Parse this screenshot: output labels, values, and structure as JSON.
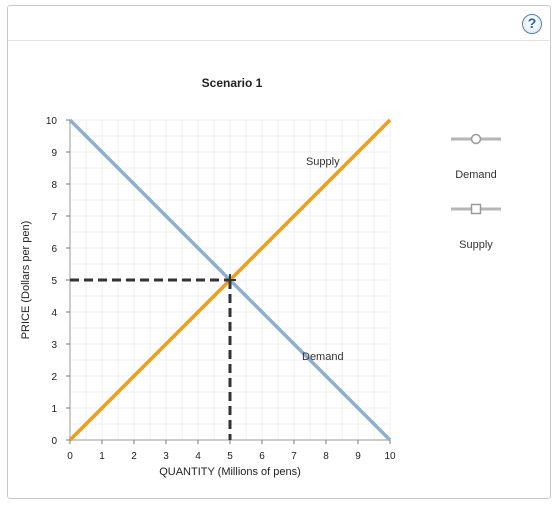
{
  "header": {
    "help_label": "?"
  },
  "chart_data": {
    "type": "line",
    "title": "Scenario 1",
    "xlabel": "QUANTITY (Millions of pens)",
    "ylabel": "PRICE (Dollars per pen)",
    "xlim": [
      0,
      10
    ],
    "ylim": [
      0,
      10
    ],
    "x_ticks": [
      0,
      1,
      2,
      3,
      4,
      5,
      6,
      7,
      8,
      9,
      10
    ],
    "y_ticks": [
      0,
      1,
      2,
      3,
      4,
      5,
      6,
      7,
      8,
      9,
      10
    ],
    "grid": true,
    "series": [
      {
        "name": "Demand",
        "color": "#8eb0cf",
        "points": [
          [
            0,
            10
          ],
          [
            10,
            0
          ]
        ],
        "label_at": [
          7.9,
          2.5
        ]
      },
      {
        "name": "Supply",
        "color": "#f39c1c",
        "points": [
          [
            0,
            0
          ],
          [
            10,
            10
          ]
        ],
        "label_at": [
          7.9,
          8.6
        ]
      }
    ],
    "equilibrium": {
      "x": 5,
      "y": 5,
      "color": "#333333"
    },
    "legend": {
      "placement": "right",
      "items": [
        {
          "label": "Demand",
          "marker": "circle",
          "color": "#9a9a9a"
        },
        {
          "label": "Supply",
          "marker": "square",
          "color": "#9a9a9a"
        }
      ]
    }
  }
}
